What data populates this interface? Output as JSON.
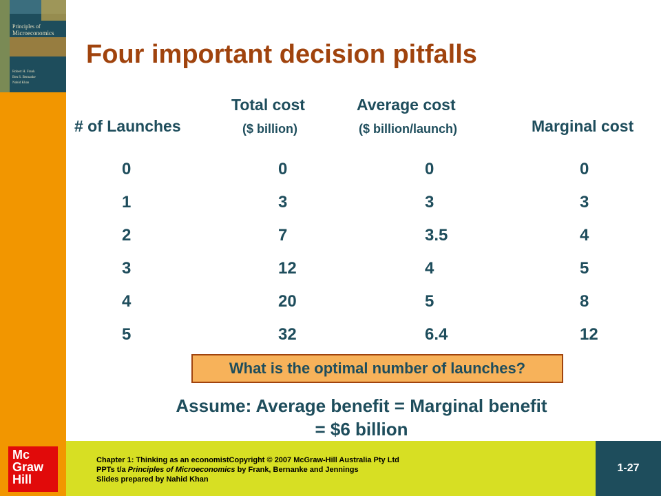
{
  "title": "Four important decision pitfalls",
  "cover": {
    "line1": "Principles of",
    "line2": "Microeconomics",
    "authors": [
      "Robert H. Frank",
      "Ben S. Bernanke",
      "Nahid Khan"
    ]
  },
  "table": {
    "headers": {
      "launches": "# of Launches",
      "total_cost_1": "Total cost",
      "total_cost_2": "($ billion)",
      "avg_cost_1": "Average cost",
      "avg_cost_2": "($ billion/launch)",
      "marginal": "Marginal cost"
    },
    "rows": [
      [
        "0",
        "0",
        "0",
        "0"
      ],
      [
        "1",
        "3",
        "3",
        "3"
      ],
      [
        "2",
        "7",
        "3.5",
        "4"
      ],
      [
        "3",
        "12",
        "4",
        "5"
      ],
      [
        "4",
        "20",
        "5",
        "8"
      ],
      [
        "5",
        "32",
        "6.4",
        "12"
      ]
    ]
  },
  "question": "What is the optimal number of launches?",
  "assume": {
    "line1": "Assume:  Average benefit = Marginal benefit",
    "line2": "= $6 billion"
  },
  "footer": {
    "line1": "Chapter 1: Thinking as an economistCopyright © 2007 McGraw-Hill Australia Pty Ltd",
    "line2_a": "PPTs t/a ",
    "line2_b": "Principles of Microeconomics",
    "line2_c": " by Frank, Bernanke  and Jennings",
    "line3": "Slides prepared by Nahid Khan"
  },
  "logo": [
    "Mc",
    "Graw",
    "Hill"
  ],
  "page_number": "1-27"
}
